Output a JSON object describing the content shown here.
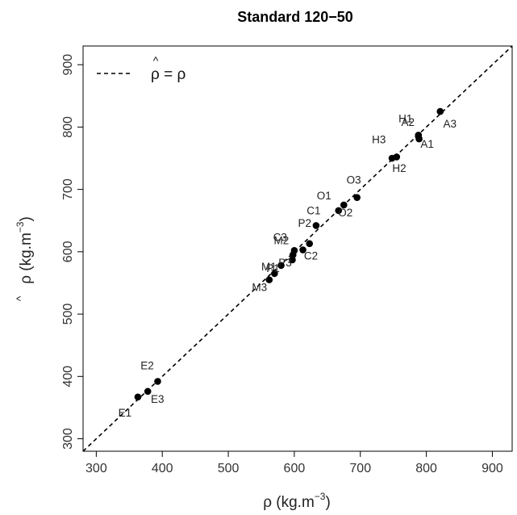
{
  "chart_data": {
    "type": "scatter",
    "title": "Standard 120−50",
    "xlabel": "ρ (kg.m⁻³)",
    "xlabel_base": "ρ (kg.m",
    "xlabel_exp": "−3",
    "ylabel_base": "ρ (kg.m",
    "ylabel_hat": "^",
    "ylabel_exp": "−3",
    "xlim": [
      280,
      930
    ],
    "ylim": [
      280,
      930
    ],
    "xticks": [
      "300",
      "400",
      "500",
      "600",
      "700",
      "800",
      "900"
    ],
    "yticks": [
      "300",
      "400",
      "500",
      "600",
      "700",
      "800",
      "900"
    ],
    "legend": {
      "position": "top-left",
      "line": "dashed",
      "label_base": "ρ = ρ",
      "label_hat": "^"
    },
    "reference_line": {
      "slope": 1,
      "intercept": 0,
      "style": "dashed"
    },
    "points": [
      {
        "label": "E1",
        "x": 363,
        "y": 367
      },
      {
        "label": "E2",
        "x": 393,
        "y": 392
      },
      {
        "label": "E3",
        "x": 378,
        "y": 376
      },
      {
        "label": "M1",
        "x": 570,
        "y": 565
      },
      {
        "label": "M2",
        "x": 600,
        "y": 602
      },
      {
        "label": "M3",
        "x": 562,
        "y": 555
      },
      {
        "label": "P1",
        "x": 580,
        "y": 578
      },
      {
        "label": "P2",
        "x": 623,
        "y": 613
      },
      {
        "label": "P3",
        "x": 597,
        "y": 587
      },
      {
        "label": "C1",
        "x": 633,
        "y": 642
      },
      {
        "label": "C2",
        "x": 613,
        "y": 603
      },
      {
        "label": "C3",
        "x": 598,
        "y": 595
      },
      {
        "label": "O1",
        "x": 667,
        "y": 666
      },
      {
        "label": "O2",
        "x": 675,
        "y": 675
      },
      {
        "label": "O3",
        "x": 695,
        "y": 687
      },
      {
        "label": "H1",
        "x": 788,
        "y": 787
      },
      {
        "label": "H2",
        "x": 748,
        "y": 750
      },
      {
        "label": "H3",
        "x": 755,
        "y": 752
      },
      {
        "label": "A1",
        "x": 789,
        "y": 781
      },
      {
        "label": "A2",
        "x": 788,
        "y": 785
      },
      {
        "label": "A3",
        "x": 821,
        "y": 825
      }
    ]
  }
}
